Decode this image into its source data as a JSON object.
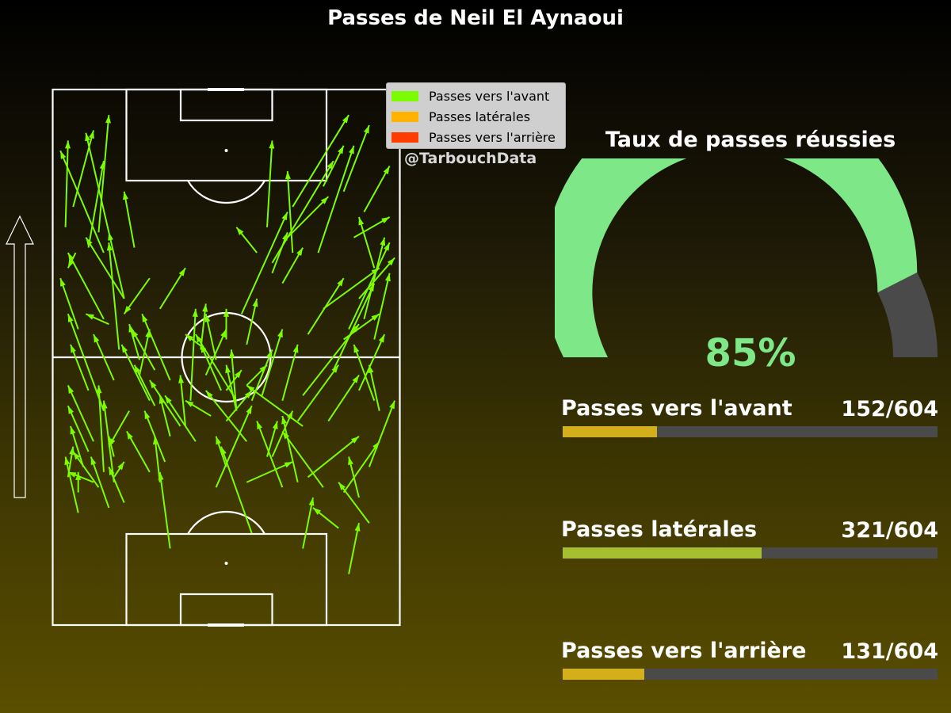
{
  "title": "Passes de Neil El Aynaoui",
  "watermark": "@TarbouchData",
  "legend": [
    {
      "label": "Passes vers l'avant",
      "color": "#7CFC00"
    },
    {
      "label": "Passes latérales",
      "color": "#FFB300"
    },
    {
      "label": "Passes vers l'arrière",
      "color": "#FF3D00"
    }
  ],
  "gauge": {
    "title": "Taux de passes réussies",
    "value_label": "85%",
    "value": 85,
    "fill_color": "#7ee787",
    "track_color": "#4a4a4a"
  },
  "stats": [
    {
      "label": "Passes vers l'avant",
      "count": "152/604",
      "value": 152,
      "total": 604,
      "color": "#d4af1c"
    },
    {
      "label": "Passes latérales",
      "count": "321/604",
      "value": 321,
      "total": 604,
      "color": "#a6bf2e"
    },
    {
      "label": "Passes vers l'arrière",
      "count": "131/604",
      "value": 131,
      "total": 604,
      "color": "#d4af1c"
    }
  ],
  "chart_data": {
    "type": "scatter",
    "title": "Passes de Neil El Aynaoui",
    "direction": "bottom-to-top",
    "pitch_units": {
      "x": [
        0,
        68
      ],
      "y": [
        0,
        105
      ]
    },
    "passes": [
      [
        2.5,
        78,
        3,
        95
      ],
      [
        4,
        82,
        8,
        97
      ],
      [
        7,
        74,
        10,
        91
      ],
      [
        10,
        73,
        1.5,
        93
      ],
      [
        9,
        77,
        11,
        100
      ],
      [
        11,
        77,
        6.5,
        96.5
      ],
      [
        4.5,
        73,
        3,
        70
      ],
      [
        10,
        60,
        3,
        73
      ],
      [
        11,
        59,
        6.5,
        61
      ],
      [
        5,
        58,
        1.5,
        68
      ],
      [
        14,
        64,
        11,
        77
      ],
      [
        16,
        74,
        14,
        85
      ],
      [
        13,
        54,
        11,
        75
      ],
      [
        7,
        46,
        3.5,
        55
      ],
      [
        12,
        48,
        8,
        57
      ],
      [
        8,
        36,
        3,
        47
      ],
      [
        10,
        42,
        3,
        61
      ],
      [
        14,
        64,
        6.5,
        76
      ],
      [
        19,
        68,
        14,
        61
      ],
      [
        21,
        62,
        26,
        70
      ],
      [
        20,
        50,
        15.5,
        58
      ],
      [
        19,
        44,
        13.5,
        55
      ],
      [
        17,
        52,
        15,
        59
      ],
      [
        23,
        48,
        17.5,
        61
      ],
      [
        25,
        39,
        19,
        48
      ],
      [
        20,
        43,
        16,
        51
      ],
      [
        10,
        30,
        9,
        47
      ],
      [
        11,
        23,
        7.5,
        33
      ],
      [
        5,
        22,
        2.5,
        33
      ],
      [
        9,
        27,
        4,
        34
      ],
      [
        7,
        34,
        3,
        43
      ],
      [
        12,
        33,
        11,
        37
      ],
      [
        15,
        42,
        11,
        35
      ],
      [
        19,
        30,
        14.5,
        38
      ],
      [
        21,
        28,
        20,
        37
      ],
      [
        23,
        15,
        21,
        30
      ],
      [
        22,
        32,
        18,
        42
      ],
      [
        23,
        37,
        21,
        45
      ],
      [
        12,
        28,
        10,
        44
      ],
      [
        17,
        49,
        19,
        58
      ],
      [
        26,
        39,
        25,
        49
      ],
      [
        28,
        36,
        22,
        45
      ],
      [
        33,
        46,
        29,
        55
      ],
      [
        32,
        52,
        30,
        61
      ],
      [
        34,
        56,
        34,
        62
      ],
      [
        36,
        44,
        28,
        57
      ],
      [
        38,
        36,
        30,
        46
      ],
      [
        36,
        42,
        35,
        54
      ],
      [
        41,
        45,
        45,
        58
      ],
      [
        45,
        44,
        48,
        55
      ],
      [
        32,
        27,
        39,
        43
      ],
      [
        34,
        46,
        37,
        50
      ],
      [
        36,
        42,
        34,
        51
      ],
      [
        38,
        55,
        40,
        64
      ],
      [
        45,
        67,
        49,
        74
      ],
      [
        43,
        69,
        46,
        77
      ],
      [
        40,
        73,
        36,
        78
      ],
      [
        42,
        78,
        43,
        95
      ],
      [
        47,
        73,
        46,
        89
      ],
      [
        47,
        82,
        58,
        100
      ],
      [
        43,
        71,
        55,
        91
      ],
      [
        46,
        76,
        54,
        84
      ],
      [
        52,
        73,
        59,
        94
      ],
      [
        53,
        86,
        57,
        94
      ],
      [
        57,
        85,
        62,
        98
      ],
      [
        61,
        81,
        66,
        90
      ],
      [
        63,
        70,
        60,
        80
      ],
      [
        60,
        64,
        67,
        72
      ],
      [
        57,
        56,
        64,
        61
      ],
      [
        63,
        56,
        66,
        69
      ],
      [
        55,
        50,
        63,
        67
      ],
      [
        50,
        57,
        57,
        68
      ],
      [
        53,
        62,
        64,
        70
      ],
      [
        58,
        58,
        66,
        75
      ],
      [
        61,
        60,
        65,
        76
      ],
      [
        49,
        45,
        60,
        59
      ],
      [
        48,
        40,
        56,
        51
      ],
      [
        54,
        40,
        60,
        49
      ],
      [
        60,
        46,
        65,
        57
      ],
      [
        63,
        44,
        59,
        55
      ],
      [
        62,
        31,
        67,
        44
      ],
      [
        64,
        42,
        62,
        51
      ],
      [
        57,
        26,
        64,
        36
      ],
      [
        50,
        29,
        60,
        37
      ],
      [
        53,
        27,
        45,
        38
      ],
      [
        60,
        25,
        58,
        33
      ],
      [
        62,
        20,
        56,
        28
      ],
      [
        48,
        28,
        45,
        41
      ],
      [
        43,
        33,
        47,
        42
      ],
      [
        39,
        18,
        33,
        35
      ],
      [
        45,
        27,
        40,
        40
      ],
      [
        49,
        39,
        38,
        47
      ],
      [
        38,
        28,
        47,
        32
      ],
      [
        39,
        44,
        43,
        54
      ],
      [
        58,
        10,
        60,
        20
      ],
      [
        49,
        15,
        51,
        25
      ],
      [
        56,
        19,
        51,
        23
      ],
      [
        12,
        29,
        14,
        32
      ],
      [
        14,
        24,
        11,
        31
      ],
      [
        8,
        28,
        3,
        30
      ],
      [
        3,
        29,
        4,
        35
      ],
      [
        6,
        31,
        3.5,
        39
      ],
      [
        34,
        40,
        39,
        46
      ],
      [
        34,
        31,
        32,
        37
      ],
      [
        38,
        47,
        42,
        51
      ],
      [
        37,
        61,
        46,
        81
      ],
      [
        59,
        76,
        66,
        80
      ],
      [
        29,
        54,
        30,
        63
      ],
      [
        27,
        44,
        28,
        62
      ],
      [
        30,
        49,
        34,
        58
      ],
      [
        31,
        41,
        26,
        44
      ],
      [
        5,
        26,
        5,
        30
      ],
      [
        30,
        54,
        26,
        57
      ],
      [
        42,
        33,
        44,
        40
      ]
    ]
  }
}
